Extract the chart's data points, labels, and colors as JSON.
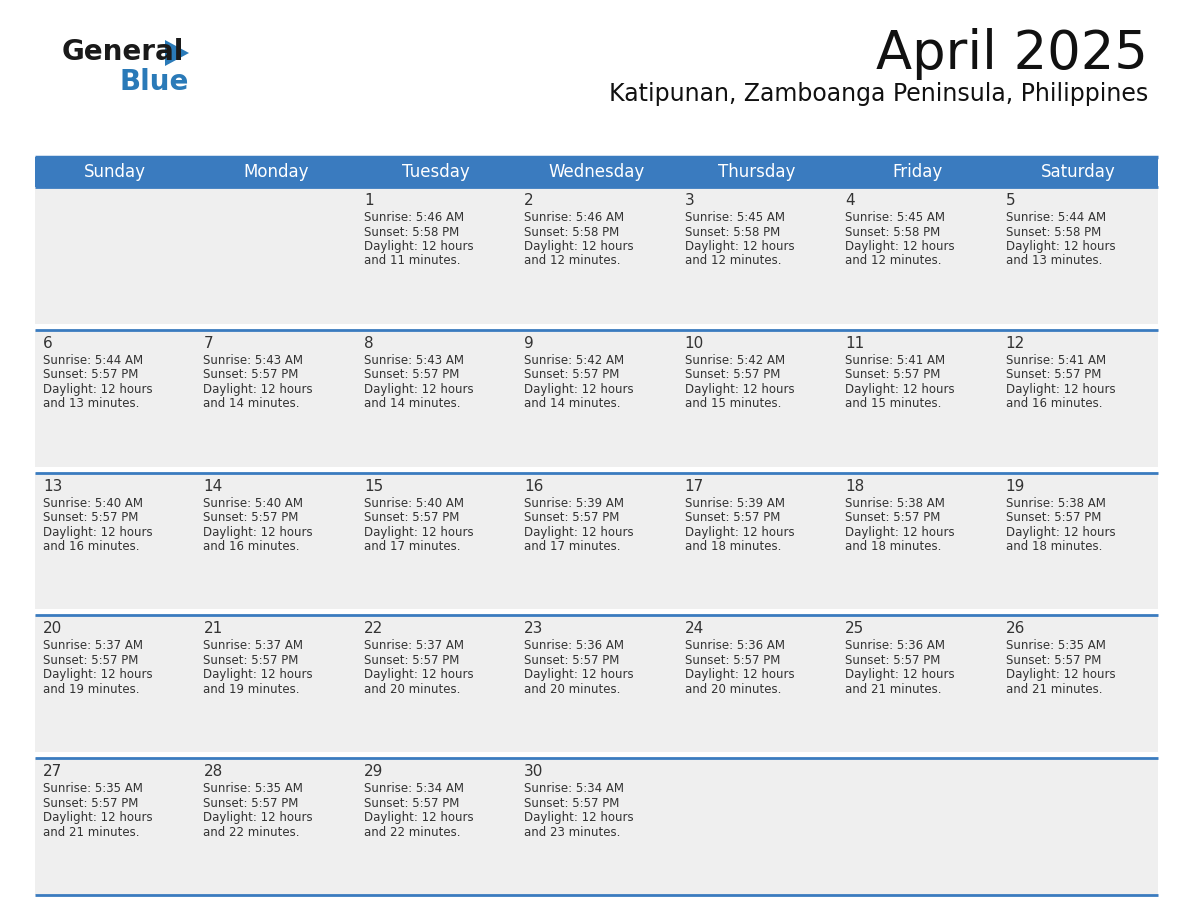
{
  "title": "April 2025",
  "subtitle": "Katipunan, Zamboanga Peninsula, Philippines",
  "header_bg": "#3a7bbf",
  "header_text_color": "#ffffff",
  "cell_bg": "#efefef",
  "border_color": "#3a7bbf",
  "text_color": "#333333",
  "days_of_week": [
    "Sunday",
    "Monday",
    "Tuesday",
    "Wednesday",
    "Thursday",
    "Friday",
    "Saturday"
  ],
  "calendar_data": [
    [
      {
        "day": "",
        "sunrise": "",
        "sunset": "",
        "daylight": ""
      },
      {
        "day": "",
        "sunrise": "",
        "sunset": "",
        "daylight": ""
      },
      {
        "day": "1",
        "sunrise": "5:46 AM",
        "sunset": "5:58 PM",
        "daylight": "12 hours and 11 minutes."
      },
      {
        "day": "2",
        "sunrise": "5:46 AM",
        "sunset": "5:58 PM",
        "daylight": "12 hours and 12 minutes."
      },
      {
        "day": "3",
        "sunrise": "5:45 AM",
        "sunset": "5:58 PM",
        "daylight": "12 hours and 12 minutes."
      },
      {
        "day": "4",
        "sunrise": "5:45 AM",
        "sunset": "5:58 PM",
        "daylight": "12 hours and 12 minutes."
      },
      {
        "day": "5",
        "sunrise": "5:44 AM",
        "sunset": "5:58 PM",
        "daylight": "12 hours and 13 minutes."
      }
    ],
    [
      {
        "day": "6",
        "sunrise": "5:44 AM",
        "sunset": "5:57 PM",
        "daylight": "12 hours and 13 minutes."
      },
      {
        "day": "7",
        "sunrise": "5:43 AM",
        "sunset": "5:57 PM",
        "daylight": "12 hours and 14 minutes."
      },
      {
        "day": "8",
        "sunrise": "5:43 AM",
        "sunset": "5:57 PM",
        "daylight": "12 hours and 14 minutes."
      },
      {
        "day": "9",
        "sunrise": "5:42 AM",
        "sunset": "5:57 PM",
        "daylight": "12 hours and 14 minutes."
      },
      {
        "day": "10",
        "sunrise": "5:42 AM",
        "sunset": "5:57 PM",
        "daylight": "12 hours and 15 minutes."
      },
      {
        "day": "11",
        "sunrise": "5:41 AM",
        "sunset": "5:57 PM",
        "daylight": "12 hours and 15 minutes."
      },
      {
        "day": "12",
        "sunrise": "5:41 AM",
        "sunset": "5:57 PM",
        "daylight": "12 hours and 16 minutes."
      }
    ],
    [
      {
        "day": "13",
        "sunrise": "5:40 AM",
        "sunset": "5:57 PM",
        "daylight": "12 hours and 16 minutes."
      },
      {
        "day": "14",
        "sunrise": "5:40 AM",
        "sunset": "5:57 PM",
        "daylight": "12 hours and 16 minutes."
      },
      {
        "day": "15",
        "sunrise": "5:40 AM",
        "sunset": "5:57 PM",
        "daylight": "12 hours and 17 minutes."
      },
      {
        "day": "16",
        "sunrise": "5:39 AM",
        "sunset": "5:57 PM",
        "daylight": "12 hours and 17 minutes."
      },
      {
        "day": "17",
        "sunrise": "5:39 AM",
        "sunset": "5:57 PM",
        "daylight": "12 hours and 18 minutes."
      },
      {
        "day": "18",
        "sunrise": "5:38 AM",
        "sunset": "5:57 PM",
        "daylight": "12 hours and 18 minutes."
      },
      {
        "day": "19",
        "sunrise": "5:38 AM",
        "sunset": "5:57 PM",
        "daylight": "12 hours and 18 minutes."
      }
    ],
    [
      {
        "day": "20",
        "sunrise": "5:37 AM",
        "sunset": "5:57 PM",
        "daylight": "12 hours and 19 minutes."
      },
      {
        "day": "21",
        "sunrise": "5:37 AM",
        "sunset": "5:57 PM",
        "daylight": "12 hours and 19 minutes."
      },
      {
        "day": "22",
        "sunrise": "5:37 AM",
        "sunset": "5:57 PM",
        "daylight": "12 hours and 20 minutes."
      },
      {
        "day": "23",
        "sunrise": "5:36 AM",
        "sunset": "5:57 PM",
        "daylight": "12 hours and 20 minutes."
      },
      {
        "day": "24",
        "sunrise": "5:36 AM",
        "sunset": "5:57 PM",
        "daylight": "12 hours and 20 minutes."
      },
      {
        "day": "25",
        "sunrise": "5:36 AM",
        "sunset": "5:57 PM",
        "daylight": "12 hours and 21 minutes."
      },
      {
        "day": "26",
        "sunrise": "5:35 AM",
        "sunset": "5:57 PM",
        "daylight": "12 hours and 21 minutes."
      }
    ],
    [
      {
        "day": "27",
        "sunrise": "5:35 AM",
        "sunset": "5:57 PM",
        "daylight": "12 hours and 21 minutes."
      },
      {
        "day": "28",
        "sunrise": "5:35 AM",
        "sunset": "5:57 PM",
        "daylight": "12 hours and 22 minutes."
      },
      {
        "day": "29",
        "sunrise": "5:34 AM",
        "sunset": "5:57 PM",
        "daylight": "12 hours and 22 minutes."
      },
      {
        "day": "30",
        "sunrise": "5:34 AM",
        "sunset": "5:57 PM",
        "daylight": "12 hours and 23 minutes."
      },
      {
        "day": "",
        "sunrise": "",
        "sunset": "",
        "daylight": ""
      },
      {
        "day": "",
        "sunrise": "",
        "sunset": "",
        "daylight": ""
      },
      {
        "day": "",
        "sunrise": "",
        "sunset": "",
        "daylight": ""
      }
    ]
  ],
  "logo_general_color": "#1a1a1a",
  "logo_blue_color": "#2a7ab8",
  "logo_triangle_color": "#2a7ab8",
  "title_fontsize": 38,
  "subtitle_fontsize": 17,
  "header_fontsize": 12,
  "day_num_fontsize": 11,
  "cell_fontsize": 8.5
}
